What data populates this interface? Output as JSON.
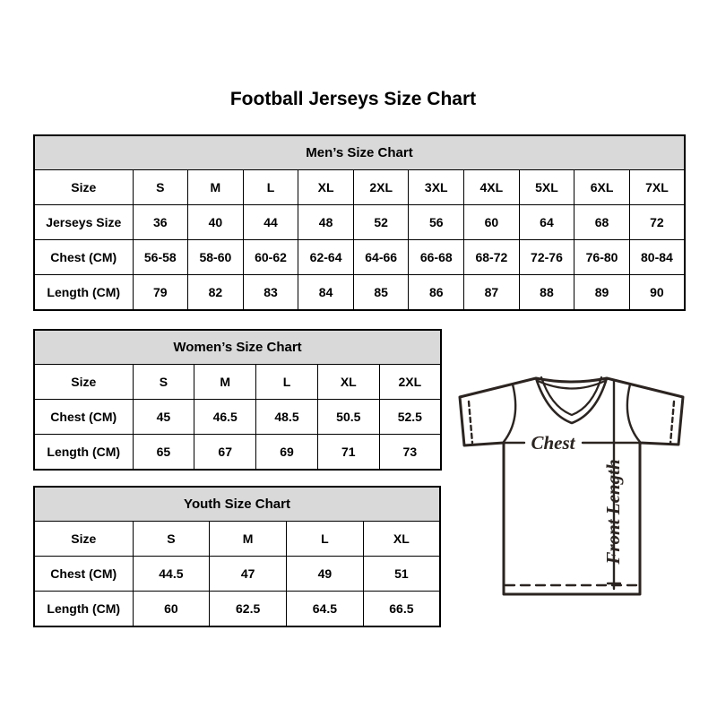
{
  "page": {
    "title": "Football Jerseys Size Chart"
  },
  "mens": {
    "title": "Men’s Size Chart",
    "header_row": [
      "Size",
      "S",
      "M",
      "L",
      "XL",
      "2XL",
      "3XL",
      "4XL",
      "5XL",
      "6XL",
      "7XL"
    ],
    "rows": [
      [
        "Jerseys Size",
        "36",
        "40",
        "44",
        "48",
        "52",
        "56",
        "60",
        "64",
        "68",
        "72"
      ],
      [
        "Chest (CM)",
        "56-58",
        "58-60",
        "60-62",
        "62-64",
        "64-66",
        "66-68",
        "68-72",
        "72-76",
        "76-80",
        "80-84"
      ],
      [
        "Length (CM)",
        "79",
        "82",
        "83",
        "84",
        "85",
        "86",
        "87",
        "88",
        "89",
        "90"
      ]
    ]
  },
  "womens": {
    "title": "Women’s Size Chart",
    "header_row": [
      "Size",
      "S",
      "M",
      "L",
      "XL",
      "2XL"
    ],
    "rows": [
      [
        "Chest (CM)",
        "45",
        "46.5",
        "48.5",
        "50.5",
        "52.5"
      ],
      [
        "Length (CM)",
        "65",
        "67",
        "69",
        "71",
        "73"
      ]
    ]
  },
  "youth": {
    "title": "Youth Size Chart",
    "header_row": [
      "Size",
      "S",
      "M",
      "L",
      "XL"
    ],
    "rows": [
      [
        "Chest (CM)",
        "44.5",
        "47",
        "49",
        "51"
      ],
      [
        "Length (CM)",
        "60",
        "62.5",
        "64.5",
        "66.5"
      ]
    ]
  },
  "diagram": {
    "chest_label": "Chest",
    "front_length_label": "Front Length"
  },
  "colors": {
    "table_header_bg": "#d9d9d9",
    "table_border": "#000000",
    "diagram_stroke": "#2b2420",
    "text": "#000000"
  }
}
